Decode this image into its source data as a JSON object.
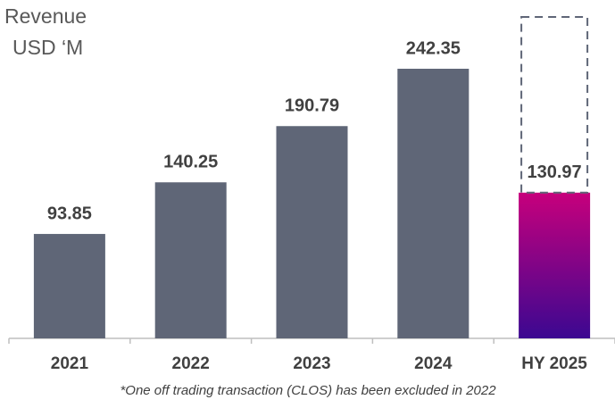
{
  "chart_data": {
    "type": "bar",
    "title": [
      "Revenue",
      "USD ‘M"
    ],
    "categories": [
      "2021",
      "2022",
      "2023",
      "2024",
      "HY 2025"
    ],
    "values": [
      93.85,
      140.25,
      190.79,
      242.35,
      130.97
    ],
    "color": "#5f6677",
    "highlight_colors": [
      "#c7007c",
      "#3b0891"
    ],
    "footnote": "*One off trading transaction (CLOS) has been excluded in 2022"
  }
}
